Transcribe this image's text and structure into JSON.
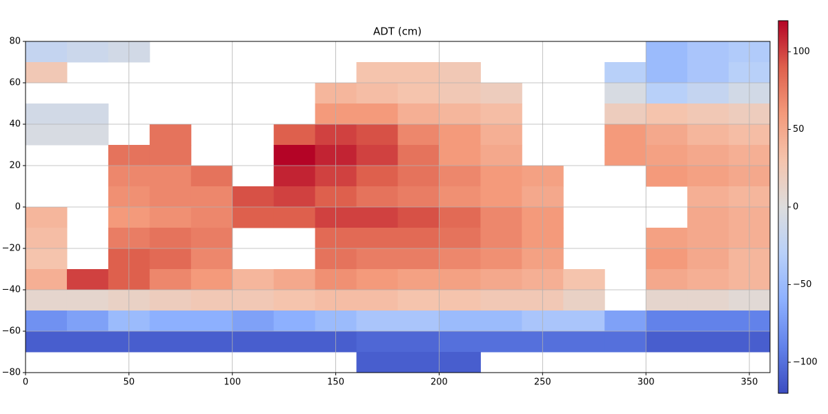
{
  "chart_data": {
    "type": "heatmap",
    "title": "ADT (cm)",
    "xlim": [
      0,
      360
    ],
    "ylim": [
      -80,
      80
    ],
    "xticks": [
      0,
      50,
      100,
      150,
      200,
      250,
      300,
      350
    ],
    "yticks": [
      {
        "value": -80,
        "label": "−80"
      },
      {
        "value": -60,
        "label": "−60"
      },
      {
        "value": -40,
        "label": "−40"
      },
      {
        "value": -20,
        "label": "−20"
      },
      0,
      20,
      40,
      60,
      80
    ],
    "grid": true,
    "colormap": "coolwarm",
    "zlim": [
      -120,
      120
    ],
    "zticks": [
      {
        "value": -100,
        "label": "−100"
      },
      {
        "value": -50,
        "label": "−50"
      },
      0,
      50,
      100
    ],
    "z": [
      [
        -20,
        -15,
        -10,
        null,
        null,
        null,
        null,
        null,
        null,
        null,
        null,
        null,
        null,
        null,
        null,
        -50,
        -40,
        -35
      ],
      [
        25,
        null,
        null,
        null,
        null,
        null,
        null,
        null,
        30,
        30,
        25,
        null,
        null,
        null,
        -30,
        -50,
        -40,
        -30
      ],
      [
        null,
        null,
        null,
        null,
        null,
        null,
        null,
        40,
        35,
        30,
        25,
        20,
        null,
        null,
        -5,
        -30,
        -20,
        -10
      ],
      [
        -10,
        -10,
        null,
        null,
        null,
        null,
        null,
        60,
        60,
        45,
        40,
        35,
        null,
        null,
        20,
        30,
        25,
        20
      ],
      [
        -5,
        -5,
        null,
        80,
        null,
        null,
        90,
        100,
        95,
        70,
        60,
        45,
        null,
        null,
        60,
        50,
        40,
        35
      ],
      [
        null,
        null,
        80,
        80,
        null,
        null,
        120,
        110,
        100,
        80,
        60,
        50,
        null,
        null,
        60,
        55,
        50,
        45
      ],
      [
        null,
        null,
        70,
        70,
        80,
        null,
        110,
        100,
        90,
        80,
        70,
        60,
        55,
        null,
        null,
        60,
        55,
        50
      ],
      [
        null,
        null,
        65,
        70,
        70,
        95,
        100,
        90,
        80,
        75,
        65,
        60,
        50,
        null,
        null,
        null,
        45,
        40
      ],
      [
        40,
        null,
        60,
        65,
        70,
        90,
        90,
        100,
        100,
        95,
        85,
        70,
        60,
        null,
        null,
        null,
        50,
        45
      ],
      [
        35,
        null,
        75,
        80,
        75,
        null,
        null,
        85,
        85,
        85,
        80,
        70,
        60,
        null,
        null,
        55,
        50,
        45
      ],
      [
        30,
        null,
        90,
        85,
        70,
        null,
        null,
        80,
        75,
        75,
        70,
        65,
        55,
        null,
        null,
        60,
        50,
        40
      ],
      [
        45,
        100,
        90,
        70,
        60,
        40,
        50,
        65,
        60,
        55,
        55,
        50,
        45,
        30,
        null,
        50,
        45,
        40
      ],
      [
        10,
        10,
        15,
        20,
        25,
        25,
        30,
        35,
        35,
        30,
        30,
        25,
        25,
        15,
        null,
        10,
        10,
        5
      ],
      [
        -80,
        -70,
        -50,
        -60,
        -60,
        -70,
        -60,
        -50,
        -40,
        -40,
        -50,
        -50,
        -40,
        -40,
        -70,
        -90,
        -90,
        -90
      ],
      [
        -110,
        -110,
        -110,
        -110,
        -110,
        -110,
        -110,
        -110,
        -105,
        -105,
        -100,
        -100,
        -100,
        -100,
        -100,
        -110,
        -110,
        -110
      ],
      [
        null,
        null,
        null,
        null,
        null,
        null,
        null,
        null,
        -110,
        -110,
        -110,
        null,
        null,
        null,
        null,
        null,
        null,
        null
      ]
    ]
  }
}
